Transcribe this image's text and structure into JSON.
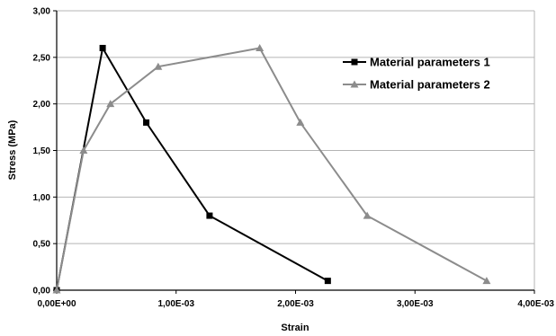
{
  "chart_data": {
    "type": "line",
    "title": "",
    "xlabel": "Strain",
    "ylabel": "Stress (MPa)",
    "xlim": [
      0,
      0.004
    ],
    "ylim": [
      0,
      3
    ],
    "x_ticks": [
      {
        "value": 0,
        "label": "0,00E+00"
      },
      {
        "value": 0.001,
        "label": "1,00E-03"
      },
      {
        "value": 0.002,
        "label": "2,00E-03"
      },
      {
        "value": 0.003,
        "label": "3,00E-03"
      },
      {
        "value": 0.004,
        "label": "4,00E-03"
      }
    ],
    "y_ticks": [
      {
        "value": 0,
        "label": "0,00"
      },
      {
        "value": 0.5,
        "label": "0,50"
      },
      {
        "value": 1,
        "label": "1,00"
      },
      {
        "value": 1.5,
        "label": "1,50"
      },
      {
        "value": 2,
        "label": "2,00"
      },
      {
        "value": 2.5,
        "label": "2,50"
      },
      {
        "value": 3,
        "label": "3,00"
      }
    ],
    "grid": "horizontal",
    "legend_position": "top-right",
    "series": [
      {
        "name": "Material parameters 1",
        "color": "#000000",
        "marker": "square",
        "points": [
          [
            0,
            0
          ],
          [
            0.000385,
            2.6
          ],
          [
            0.00075,
            1.8
          ],
          [
            0.00128,
            0.8
          ],
          [
            0.00227,
            0.1
          ]
        ]
      },
      {
        "name": "Material parameters 2",
        "color": "#8c8c8c",
        "marker": "triangle",
        "points": [
          [
            0,
            0
          ],
          [
            0.000225,
            1.5
          ],
          [
            0.00045,
            2.0
          ],
          [
            0.00085,
            2.4
          ],
          [
            0.0017,
            2.6
          ],
          [
            0.00204,
            1.8
          ],
          [
            0.0026,
            0.8
          ],
          [
            0.0036,
            0.1
          ]
        ]
      }
    ]
  }
}
